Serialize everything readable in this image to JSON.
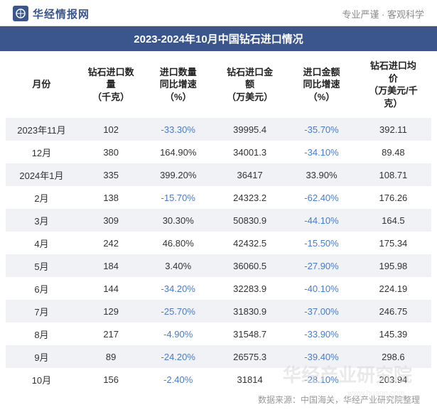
{
  "header": {
    "site_name": "华经情报网",
    "slogan": "专业严谨 · 客观科学",
    "logo_color": "#3a568c"
  },
  "title": "2023-2024年10月中国钻石进口情况",
  "columns": [
    "月份",
    "钻石进口数\n量\n（千克）",
    "进口数量\n同比增速\n（%）",
    "钻石进口金\n额\n（万美元）",
    "进口金额\n同比增速\n（%）",
    "钻石进口均\n价\n（万美元/千\n克）"
  ],
  "rows": [
    {
      "month": "2023年11月",
      "qty": "102",
      "qty_yoy": "-33.30%",
      "value": "39995.4",
      "value_yoy": "-35.70%",
      "avg": "392.11"
    },
    {
      "month": "12月",
      "qty": "380",
      "qty_yoy": "164.90%",
      "value": "34001.3",
      "value_yoy": "-34.10%",
      "avg": "89.48"
    },
    {
      "month": "2024年1月",
      "qty": "335",
      "qty_yoy": "399.20%",
      "value": "36417",
      "value_yoy": "33.90%",
      "avg": "108.71"
    },
    {
      "month": "2月",
      "qty": "138",
      "qty_yoy": "-15.70%",
      "value": "24323.2",
      "value_yoy": "-62.40%",
      "avg": "176.26"
    },
    {
      "month": "3月",
      "qty": "309",
      "qty_yoy": "30.30%",
      "value": "50830.9",
      "value_yoy": "-44.10%",
      "avg": "164.5"
    },
    {
      "month": "4月",
      "qty": "242",
      "qty_yoy": "46.80%",
      "value": "42432.5",
      "value_yoy": "-15.50%",
      "avg": "175.34"
    },
    {
      "month": "5月",
      "qty": "184",
      "qty_yoy": "3.40%",
      "value": "36060.5",
      "value_yoy": "-27.90%",
      "avg": "195.98"
    },
    {
      "month": "6月",
      "qty": "144",
      "qty_yoy": "-34.20%",
      "value": "32283.9",
      "value_yoy": "-40.10%",
      "avg": "224.19"
    },
    {
      "month": "7月",
      "qty": "129",
      "qty_yoy": "-25.70%",
      "value": "31830.9",
      "value_yoy": "-37.00%",
      "avg": "246.75"
    },
    {
      "month": "8月",
      "qty": "217",
      "qty_yoy": "-4.90%",
      "value": "31548.7",
      "value_yoy": "-33.90%",
      "avg": "145.39"
    },
    {
      "month": "9月",
      "qty": "89",
      "qty_yoy": "-24.20%",
      "value": "26575.3",
      "value_yoy": "-39.40%",
      "avg": "298.6"
    },
    {
      "month": "10月",
      "qty": "156",
      "qty_yoy": "-2.40%",
      "value": "31814",
      "value_yoy": "-28.10%",
      "avg": "203.94"
    }
  ],
  "style": {
    "negative_color": "#4a7cc4",
    "positive_color": "#333333",
    "stripe_color": "#f0f2f5",
    "background_color": "#ffffff",
    "title_bg": "#3a568c",
    "title_fg": "#ffffff",
    "header_font_size": 13,
    "body_font_size": 13
  },
  "footer": "数据来源：中国海关，华经产业研究院整理",
  "watermark": {
    "main": "华经产业研究院",
    "sub": "www.huaon.com"
  }
}
